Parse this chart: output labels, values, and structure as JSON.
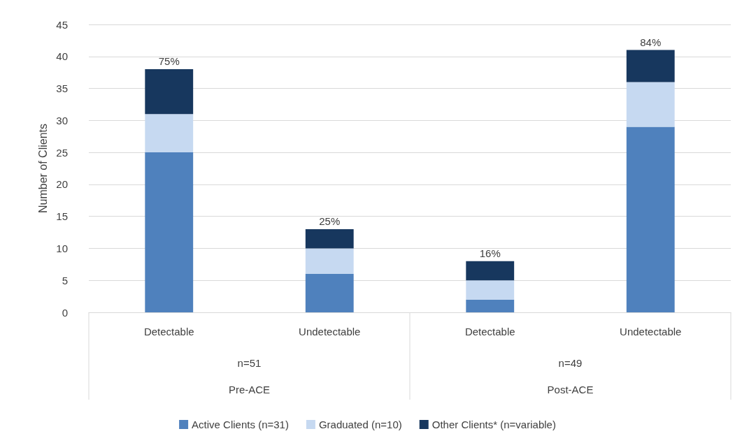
{
  "chart_data": {
    "type": "bar",
    "stacked": true,
    "ylabel": "Number of Clients",
    "categories": [
      "Detectable",
      "Undetectable",
      "Detectable",
      "Undetectable"
    ],
    "series": [
      {
        "name": "Active Clients (n=31)",
        "color": "#4f81bd",
        "values": [
          25,
          6,
          2,
          29
        ]
      },
      {
        "name": "Graduated (n=10)",
        "color": "#c6d9f1",
        "values": [
          6,
          4,
          3,
          7
        ]
      },
      {
        "name": "Other Clients* (n=variable)",
        "color": "#17375e",
        "values": [
          7,
          3,
          3,
          5
        ]
      }
    ],
    "annotations": [
      "n=51",
      "Pre-ACE",
      "n=49",
      "Post-ACE",
      "75%",
      "25%",
      "16%",
      "84%"
    ],
    "ylim": [
      0,
      45
    ],
    "yticks": [
      0,
      5,
      10,
      15,
      20,
      25,
      30,
      35,
      40,
      45
    ],
    "grid": "y",
    "legend": "bottom"
  }
}
